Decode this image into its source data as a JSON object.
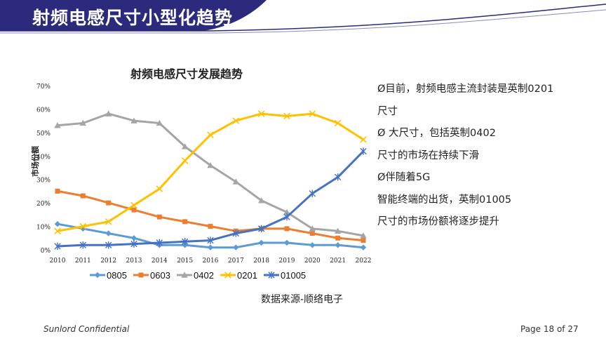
{
  "slide": {
    "title": "射频电感尺寸小型化趋势",
    "footer_left": "Sunlord Confidential",
    "footer_right": "Page 18 of 27",
    "source": "数据来源-顺络电子",
    "accent_color": "#2b2a7d"
  },
  "bullets": [
    "Ø目前，射频电感主流封装是英制0201",
    "尺寸",
    "Ø 大尺寸，包括英制0402",
    "尺寸的市场在持续下滑",
    "Ø伴随着5G",
    "智能终端的出货，英制01005",
    "尺寸的市场份额将逐步提升"
  ],
  "chart_data": {
    "type": "line",
    "title": "射频电感尺寸发展趋势",
    "ylabel": "市场份额",
    "xlabel": "",
    "ylim": [
      0,
      70
    ],
    "yticks": [
      "0%",
      "10%",
      "20%",
      "30%",
      "40%",
      "50%",
      "60%",
      "70%"
    ],
    "categories": [
      "2010",
      "2011",
      "2012",
      "2013",
      "2014",
      "2015",
      "2016",
      "2017",
      "2018",
      "2019",
      "2020",
      "2021",
      "2022"
    ],
    "legend_position": "bottom",
    "series": [
      {
        "name": "0805",
        "color": "#5b9bd5",
        "marker": "diamond",
        "values": [
          11,
          9,
          7,
          5,
          2,
          2,
          1,
          1,
          3,
          3,
          2,
          2,
          1
        ]
      },
      {
        "name": "0603",
        "color": "#ed7d31",
        "marker": "square",
        "values": [
          25,
          23,
          20,
          17,
          14,
          12,
          10,
          8,
          9,
          9,
          7,
          5,
          4
        ]
      },
      {
        "name": "0402",
        "color": "#a5a5a5",
        "marker": "triangle",
        "values": [
          53,
          54,
          58,
          55,
          54,
          44,
          36,
          29,
          21,
          16,
          9,
          8,
          6
        ]
      },
      {
        "name": "0201",
        "color": "#ffc000",
        "marker": "x",
        "values": [
          8,
          10,
          12,
          19,
          26,
          38,
          49,
          55,
          58,
          57,
          58,
          54,
          47
        ]
      },
      {
        "name": "01005",
        "color": "#4472c4",
        "marker": "star",
        "values": [
          1.5,
          2,
          2,
          2.5,
          3,
          3.5,
          4,
          7,
          9,
          14,
          24,
          31,
          42
        ]
      }
    ]
  }
}
